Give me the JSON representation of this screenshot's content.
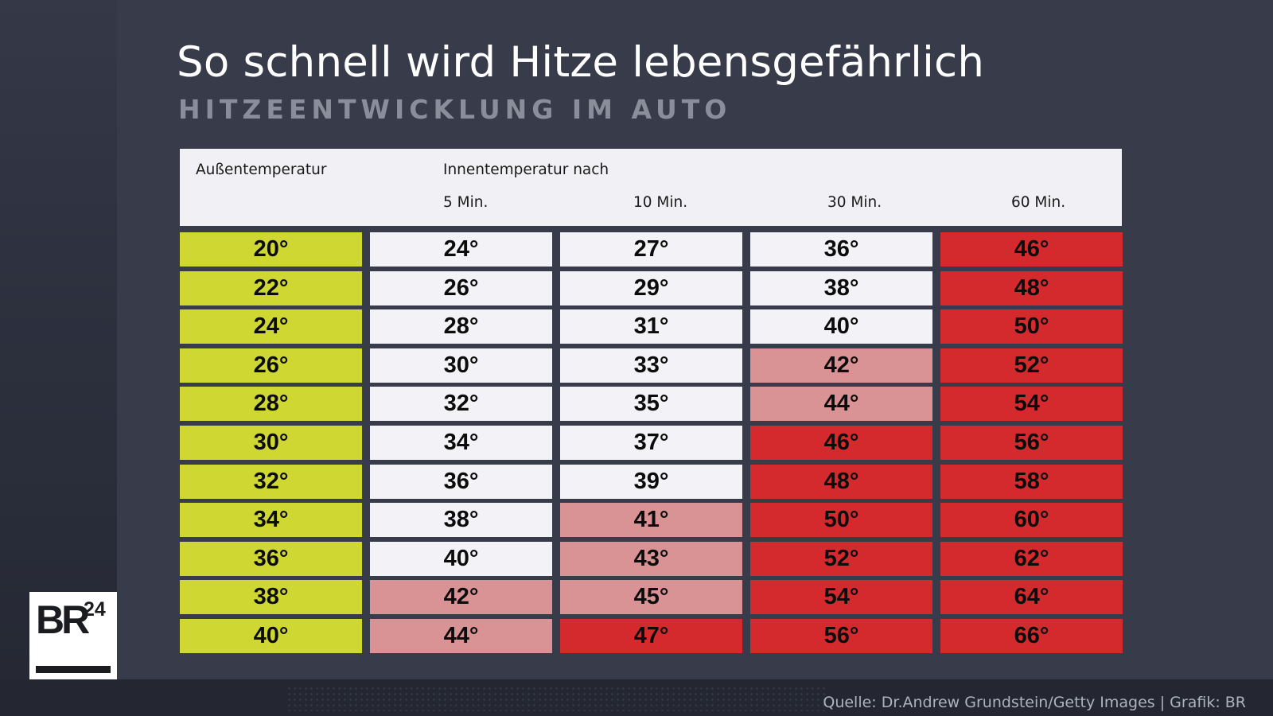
{
  "title": "So schnell wird Hitze lebensgefährlich",
  "subtitle": "HITZEENTWICKLUNG IM AUTO",
  "header": {
    "outside_label": "Außentemperatur",
    "inside_label": "Innentemperatur nach",
    "columns": [
      "5 Min.",
      "10 Min.",
      "30 Min.",
      "60 Min."
    ]
  },
  "colors": {
    "yellow": "#cfd832",
    "white": "#f3f3f7",
    "pink": "#d99394",
    "red": "#d42a2e"
  },
  "rows": [
    {
      "cells": [
        {
          "v": "20°",
          "c": "yellow"
        },
        {
          "v": "24°",
          "c": "white"
        },
        {
          "v": "27°",
          "c": "white"
        },
        {
          "v": "36°",
          "c": "white"
        },
        {
          "v": "46°",
          "c": "red"
        }
      ]
    },
    {
      "cells": [
        {
          "v": "22°",
          "c": "yellow"
        },
        {
          "v": "26°",
          "c": "white"
        },
        {
          "v": "29°",
          "c": "white"
        },
        {
          "v": "38°",
          "c": "white"
        },
        {
          "v": "48°",
          "c": "red"
        }
      ]
    },
    {
      "cells": [
        {
          "v": "24°",
          "c": "yellow"
        },
        {
          "v": "28°",
          "c": "white"
        },
        {
          "v": "31°",
          "c": "white"
        },
        {
          "v": "40°",
          "c": "white"
        },
        {
          "v": "50°",
          "c": "red"
        }
      ]
    },
    {
      "cells": [
        {
          "v": "26°",
          "c": "yellow"
        },
        {
          "v": "30°",
          "c": "white"
        },
        {
          "v": "33°",
          "c": "white"
        },
        {
          "v": "42°",
          "c": "pink"
        },
        {
          "v": "52°",
          "c": "red"
        }
      ]
    },
    {
      "cells": [
        {
          "v": "28°",
          "c": "yellow"
        },
        {
          "v": "32°",
          "c": "white"
        },
        {
          "v": "35°",
          "c": "white"
        },
        {
          "v": "44°",
          "c": "pink"
        },
        {
          "v": "54°",
          "c": "red"
        }
      ]
    },
    {
      "cells": [
        {
          "v": "30°",
          "c": "yellow"
        },
        {
          "v": "34°",
          "c": "white"
        },
        {
          "v": "37°",
          "c": "white"
        },
        {
          "v": "46°",
          "c": "red"
        },
        {
          "v": "56°",
          "c": "red"
        }
      ]
    },
    {
      "cells": [
        {
          "v": "32°",
          "c": "yellow"
        },
        {
          "v": "36°",
          "c": "white"
        },
        {
          "v": "39°",
          "c": "white"
        },
        {
          "v": "48°",
          "c": "red"
        },
        {
          "v": "58°",
          "c": "red"
        }
      ]
    },
    {
      "cells": [
        {
          "v": "34°",
          "c": "yellow"
        },
        {
          "v": "38°",
          "c": "white"
        },
        {
          "v": "41°",
          "c": "pink"
        },
        {
          "v": "50°",
          "c": "red"
        },
        {
          "v": "60°",
          "c": "red"
        }
      ]
    },
    {
      "cells": [
        {
          "v": "36°",
          "c": "yellow"
        },
        {
          "v": "40°",
          "c": "white"
        },
        {
          "v": "43°",
          "c": "pink"
        },
        {
          "v": "52°",
          "c": "red"
        },
        {
          "v": "62°",
          "c": "red"
        }
      ]
    },
    {
      "cells": [
        {
          "v": "38°",
          "c": "yellow"
        },
        {
          "v": "42°",
          "c": "pink"
        },
        {
          "v": "45°",
          "c": "pink"
        },
        {
          "v": "54°",
          "c": "red"
        },
        {
          "v": "64°",
          "c": "red"
        }
      ]
    },
    {
      "cells": [
        {
          "v": "40°",
          "c": "yellow"
        },
        {
          "v": "44°",
          "c": "pink"
        },
        {
          "v": "47°",
          "c": "red"
        },
        {
          "v": "56°",
          "c": "red"
        },
        {
          "v": "66°",
          "c": "red"
        }
      ]
    }
  ],
  "logo": {
    "letters": "BR",
    "number": "24"
  },
  "source": "Quelle: Dr.Andrew Grundstein/Getty Images | Grafik: BR"
}
